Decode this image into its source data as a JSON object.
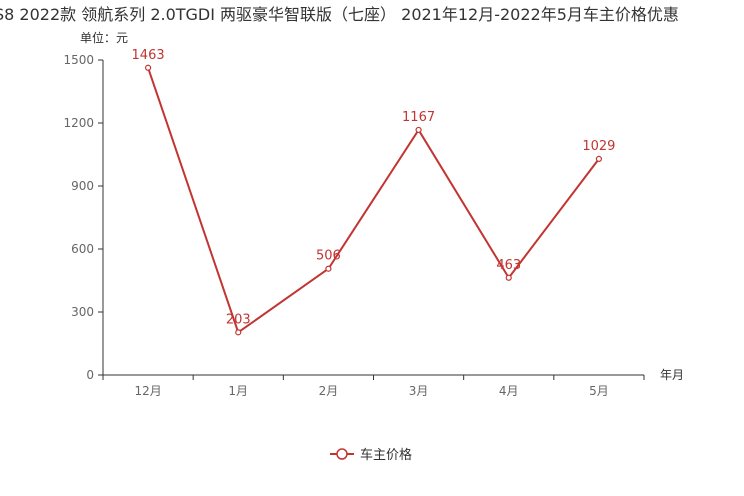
{
  "chart_data": {
    "type": "line",
    "title": "S8 2022款 领航系列 2.0TGDI 两驱豪华智联版（七座） 2021年12月-2022年5月车主价格优惠",
    "unit_label": "单位：元",
    "xlabel": "年月",
    "ylabel": "",
    "categories": [
      "12月",
      "1月",
      "2月",
      "3月",
      "4月",
      "5月"
    ],
    "series": [
      {
        "name": "车主价格",
        "values": [
          1463,
          203,
          506,
          1167,
          463,
          1029
        ]
      }
    ],
    "ylim": [
      0,
      1500
    ],
    "yticks": [
      0,
      300,
      600,
      900,
      1200,
      1500
    ],
    "grid": false,
    "legend": "bottom-center",
    "colors": {
      "series": "#c23531",
      "axis": "#333333",
      "text": "#333333"
    }
  }
}
